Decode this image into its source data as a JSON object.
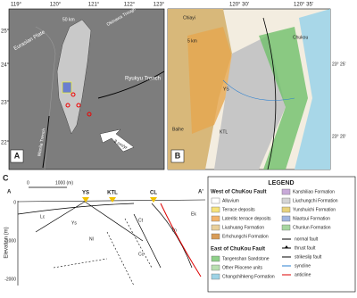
{
  "panel_a": {
    "label": "A",
    "lon_ticks": [
      "119°",
      "120°",
      "121°",
      "122°",
      "123°"
    ],
    "lat_ticks": [
      "25°",
      "24°",
      "23°",
      "22°"
    ],
    "eurasian_plate": "Eurasian Plate",
    "scale": "50 km",
    "okinawa_trough": "Okinawa Trough",
    "ryukyu_trench": "Ryukyu Trench",
    "manila_trench": "Manila Trench",
    "rate": "8 cm/yr"
  },
  "panel_b": {
    "label": "B",
    "lon_ticks": [
      "120° 30'",
      "120° 35'"
    ],
    "lat_ticks": [
      "23° 25'",
      "23° 20'"
    ],
    "chiayi": "Chiayi",
    "chukou": "Chukou",
    "scale": "5 km",
    "ys": "YS",
    "ktl": "KTL",
    "baihe": "Baihe"
  },
  "panel_c": {
    "label": "C",
    "start": "A",
    "end": "A'",
    "scale_zero": "0",
    "scale_end": "1000 (m)",
    "stations": [
      "YS",
      "KTL",
      "CL"
    ],
    "y_axis_label": "Elevation (m)",
    "y_ticks": [
      "0",
      "-1000",
      "-2000"
    ],
    "units": [
      "Lc",
      "Ys",
      "Nl",
      "Ct",
      "Cc",
      "Tn",
      "Ek"
    ]
  },
  "legend": {
    "title": "LEGEND",
    "west_title": "West of ChuKou Fault",
    "west": [
      "Alluvium",
      "Terrace deposits",
      "Lateritic terrace deposits",
      "Liushuang Formation",
      "Erhchungchi Formation"
    ],
    "east_title": "East of ChuKou Fault",
    "east": [
      "Tangenshan Sandstone",
      "Other Pliocene units",
      "Changchihkeng Formation"
    ],
    "west2": [
      "Kanshiliao Formation",
      "Liuchungchi Formation",
      "Yunshuichi Formation",
      "Niaotsui Formation",
      "Chunlun Formation"
    ],
    "symbols": [
      "normal fault",
      "thrust fault",
      "strikeslip fault",
      "syncline",
      "anticline"
    ]
  }
}
